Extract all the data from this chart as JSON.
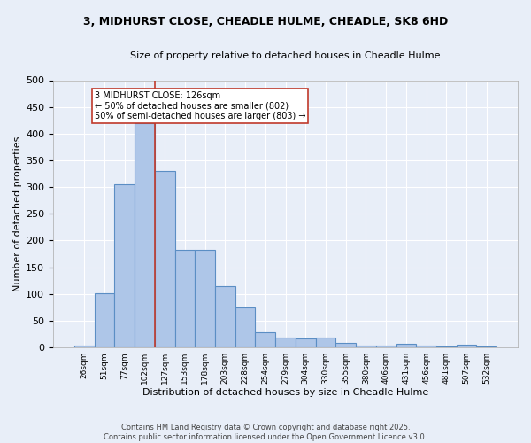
{
  "title_line1": "3, MIDHURST CLOSE, CHEADLE HULME, CHEADLE, SK8 6HD",
  "title_line2": "Size of property relative to detached houses in Cheadle Hulme",
  "xlabel": "Distribution of detached houses by size in Cheadle Hulme",
  "ylabel": "Number of detached properties",
  "categories": [
    "26sqm",
    "51sqm",
    "77sqm",
    "102sqm",
    "127sqm",
    "153sqm",
    "178sqm",
    "203sqm",
    "228sqm",
    "254sqm",
    "279sqm",
    "304sqm",
    "330sqm",
    "355sqm",
    "380sqm",
    "406sqm",
    "431sqm",
    "456sqm",
    "481sqm",
    "507sqm",
    "532sqm"
  ],
  "values": [
    4,
    101,
    305,
    419,
    330,
    182,
    182,
    115,
    75,
    29,
    18,
    17,
    18,
    9,
    4,
    4,
    7,
    4,
    1,
    5,
    2
  ],
  "bar_color": "#aec6e8",
  "bar_edge_color": "#5b8ec4",
  "bg_color": "#e8eef8",
  "grid_color": "#ffffff",
  "vline_x_index": 3,
  "vline_color": "#c0392b",
  "annotation_text": "3 MIDHURST CLOSE: 126sqm\n← 50% of detached houses are smaller (802)\n50% of semi-detached houses are larger (803) →",
  "annotation_box_color": "#ffffff",
  "annotation_edge_color": "#c0392b",
  "footer_line1": "Contains HM Land Registry data © Crown copyright and database right 2025.",
  "footer_line2": "Contains public sector information licensed under the Open Government Licence v3.0.",
  "ylim": [
    0,
    500
  ],
  "yticks": [
    0,
    50,
    100,
    150,
    200,
    250,
    300,
    350,
    400,
    450,
    500
  ]
}
